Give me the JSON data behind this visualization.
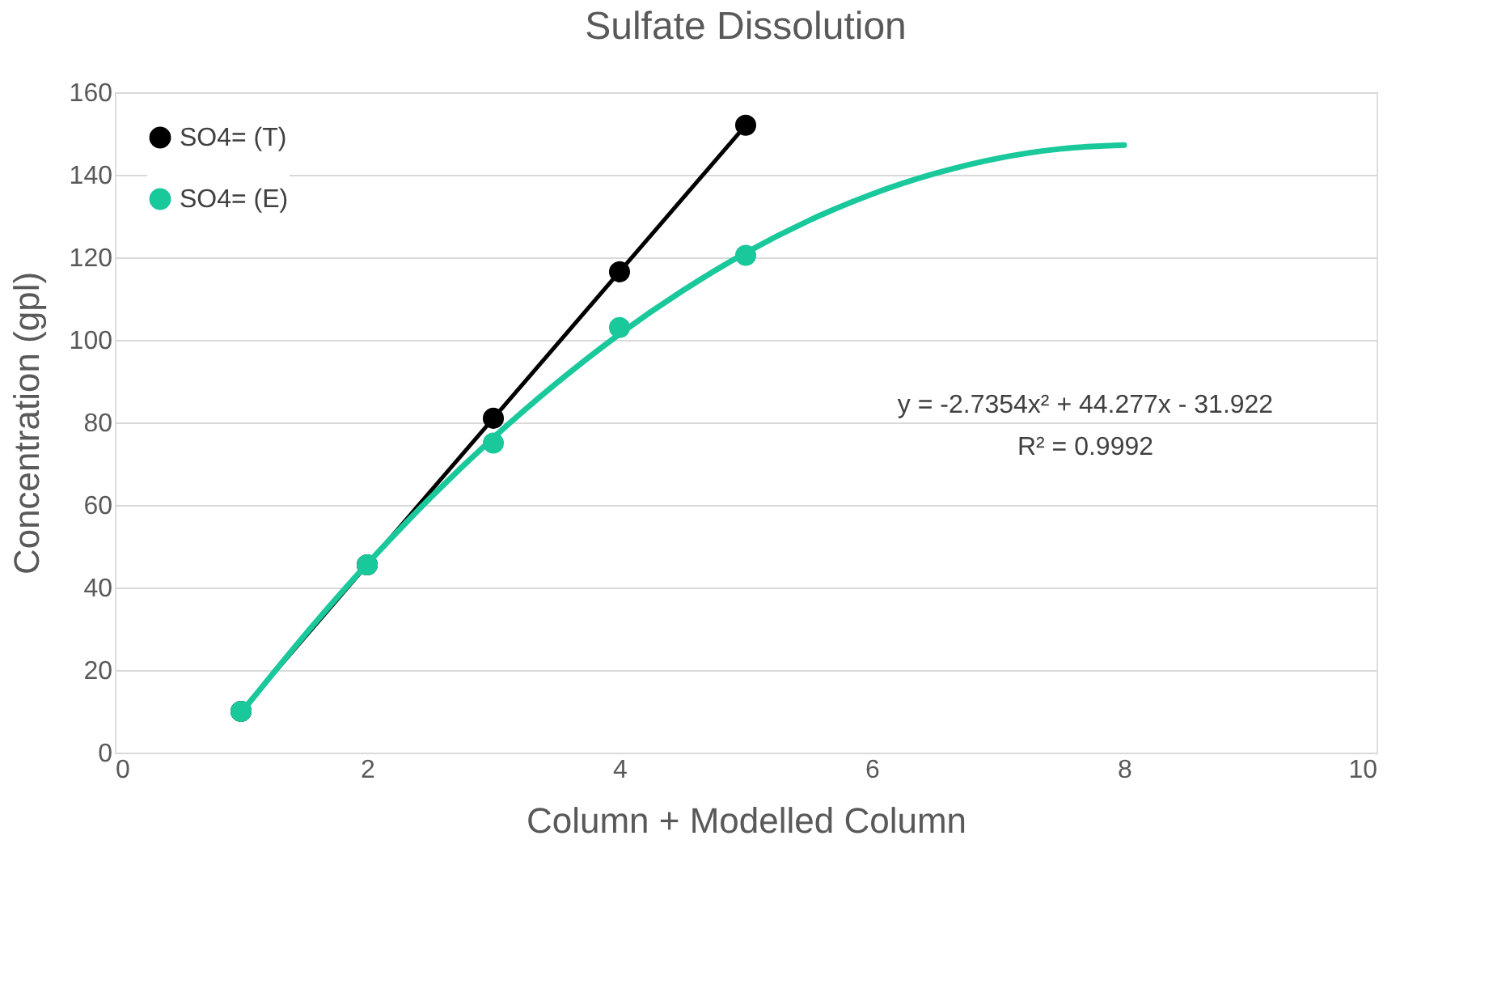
{
  "chart_data": {
    "type": "line",
    "title": "Sulfate Dissolution",
    "xlabel": "Column + Modelled Column",
    "ylabel": "Concentration (gpl)",
    "x": [
      1,
      2,
      3,
      4,
      5
    ],
    "series": [
      {
        "name": "SO4= (T)",
        "color": "#000000",
        "marker": "circle",
        "values": [
          10,
          45.5,
          81,
          116.5,
          152
        ]
      },
      {
        "name": "SO4= (E)",
        "type": "scatter",
        "color": "#19c89b",
        "marker": "circle",
        "values": [
          10,
          45.5,
          75,
          103,
          120.5
        ]
      },
      {
        "type": "line",
        "color": "#19c89b",
        "marker": "none",
        "x": [
          1,
          1.5,
          2,
          2.5,
          3,
          3.5,
          4,
          4.5,
          5,
          5.5,
          6,
          6.5,
          7,
          7.5,
          8
        ],
        "values": [
          9.6,
          28.3,
          45.7,
          61.7,
          76.3,
          89.5,
          101.4,
          111.9,
          121.1,
          128.9,
          135.3,
          140.3,
          144.0,
          146.3,
          147.2
        ]
      }
    ],
    "xlim": [
      0,
      10
    ],
    "xticks": [
      0,
      2,
      4,
      6,
      8,
      10
    ],
    "ylim": [
      0,
      160
    ],
    "yticks": [
      0,
      20,
      40,
      60,
      80,
      100,
      120,
      140,
      160
    ],
    "grid": "y",
    "legend": "top left",
    "line_style": "solid",
    "annotations": [
      "y = -2.7354x² + 44.277x - 31.922",
      "R² = 0.9992"
    ]
  }
}
